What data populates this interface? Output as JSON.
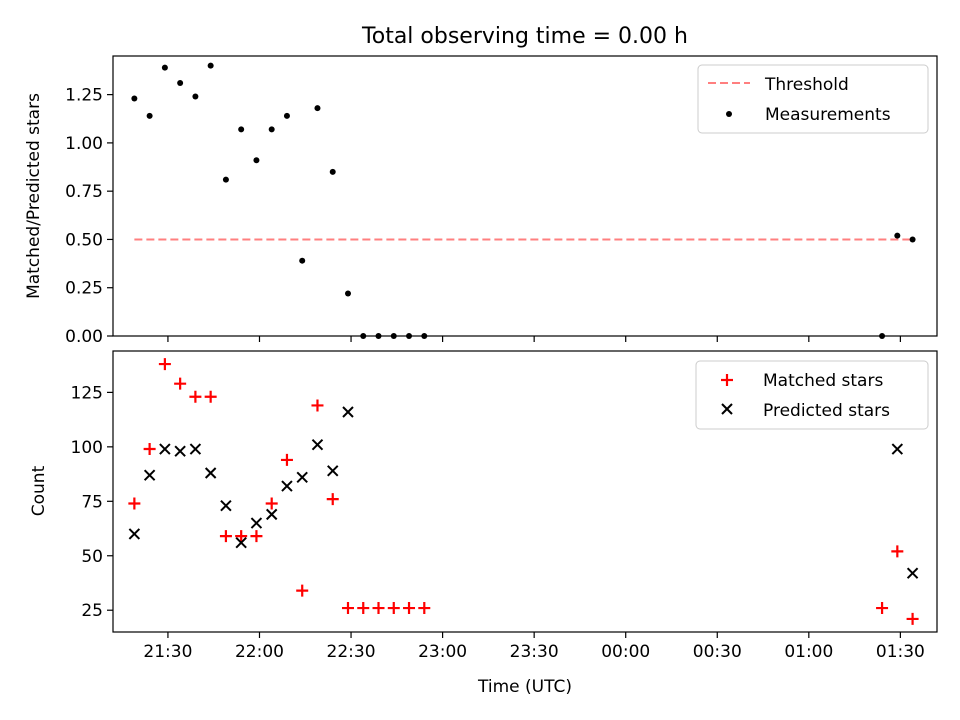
{
  "chart_data": [
    {
      "type": "scatter",
      "title": "Total observing time = 0.00 h",
      "ylabel": "Matched/Predicted stars",
      "xlabel": "",
      "xlim": [
        "21:12",
        "01:42"
      ],
      "ylim": [
        0,
        1.45
      ],
      "x_ticks": [
        "21:30",
        "22:00",
        "22:30",
        "23:00",
        "23:30",
        "00:00",
        "00:30",
        "01:00",
        "01:30"
      ],
      "y_ticks": [
        "0.00",
        "0.25",
        "0.50",
        "0.75",
        "1.00",
        "1.25"
      ],
      "y_tick_values": [
        0,
        0.25,
        0.5,
        0.75,
        1.0,
        1.25
      ],
      "grid": false,
      "legend": "top-right",
      "series": [
        {
          "name": "Threshold",
          "kind": "line",
          "style": "dashed",
          "color": "#ff7f7f",
          "x": [
            "21:19",
            "01:34"
          ],
          "y": [
            0.5,
            0.5
          ]
        },
        {
          "name": "Measurements",
          "kind": "scatter",
          "marker": "dot",
          "color": "#000000",
          "x": [
            "21:19",
            "21:24",
            "21:29",
            "21:34",
            "21:39",
            "21:44",
            "21:49",
            "21:54",
            "21:59",
            "22:04",
            "22:09",
            "22:14",
            "22:19",
            "22:24",
            "22:29",
            "22:34",
            "22:39",
            "22:44",
            "22:49",
            "22:54",
            "01:24",
            "01:29",
            "01:34"
          ],
          "y": [
            1.23,
            1.14,
            1.39,
            1.31,
            1.24,
            1.4,
            0.81,
            1.07,
            0.91,
            1.07,
            1.14,
            0.39,
            1.18,
            0.85,
            0.22,
            0.0,
            0.0,
            0.0,
            0.0,
            0.0,
            0.0,
            0.52,
            0.5
          ]
        }
      ]
    },
    {
      "type": "scatter",
      "title": "",
      "ylabel": "Count",
      "xlabel": "Time (UTC)",
      "xlim": [
        "21:12",
        "01:42"
      ],
      "ylim": [
        15,
        144
      ],
      "x_ticks": [
        "21:30",
        "22:00",
        "22:30",
        "23:00",
        "23:30",
        "00:00",
        "00:30",
        "01:00",
        "01:30"
      ],
      "y_ticks": [
        "25",
        "50",
        "75",
        "100",
        "125"
      ],
      "y_tick_values": [
        25,
        50,
        75,
        100,
        125
      ],
      "grid": false,
      "legend": "top-right",
      "series": [
        {
          "name": "Matched stars",
          "kind": "scatter",
          "marker": "plus",
          "color": "#ff0000",
          "x": [
            "21:19",
            "21:24",
            "21:29",
            "21:34",
            "21:39",
            "21:44",
            "21:49",
            "21:54",
            "21:59",
            "22:04",
            "22:09",
            "22:14",
            "22:19",
            "22:24",
            "22:29",
            "22:34",
            "22:39",
            "22:44",
            "22:49",
            "22:54",
            "01:24",
            "01:29",
            "01:34"
          ],
          "y": [
            74,
            99,
            138,
            129,
            123,
            123,
            59,
            59,
            59,
            74,
            94,
            34,
            119,
            76,
            26,
            26,
            26,
            26,
            26,
            26,
            26,
            52,
            21
          ]
        },
        {
          "name": "Predicted stars",
          "kind": "scatter",
          "marker": "x",
          "color": "#000000",
          "x": [
            "21:19",
            "21:24",
            "21:29",
            "21:34",
            "21:39",
            "21:44",
            "21:49",
            "21:54",
            "21:59",
            "22:04",
            "22:09",
            "22:14",
            "22:19",
            "22:24",
            "22:29",
            "01:29",
            "01:34"
          ],
          "y": [
            60,
            87,
            99,
            98,
            99,
            88,
            73,
            56,
            65,
            69,
            82,
            86,
            101,
            89,
            116,
            99,
            42
          ]
        }
      ]
    }
  ]
}
